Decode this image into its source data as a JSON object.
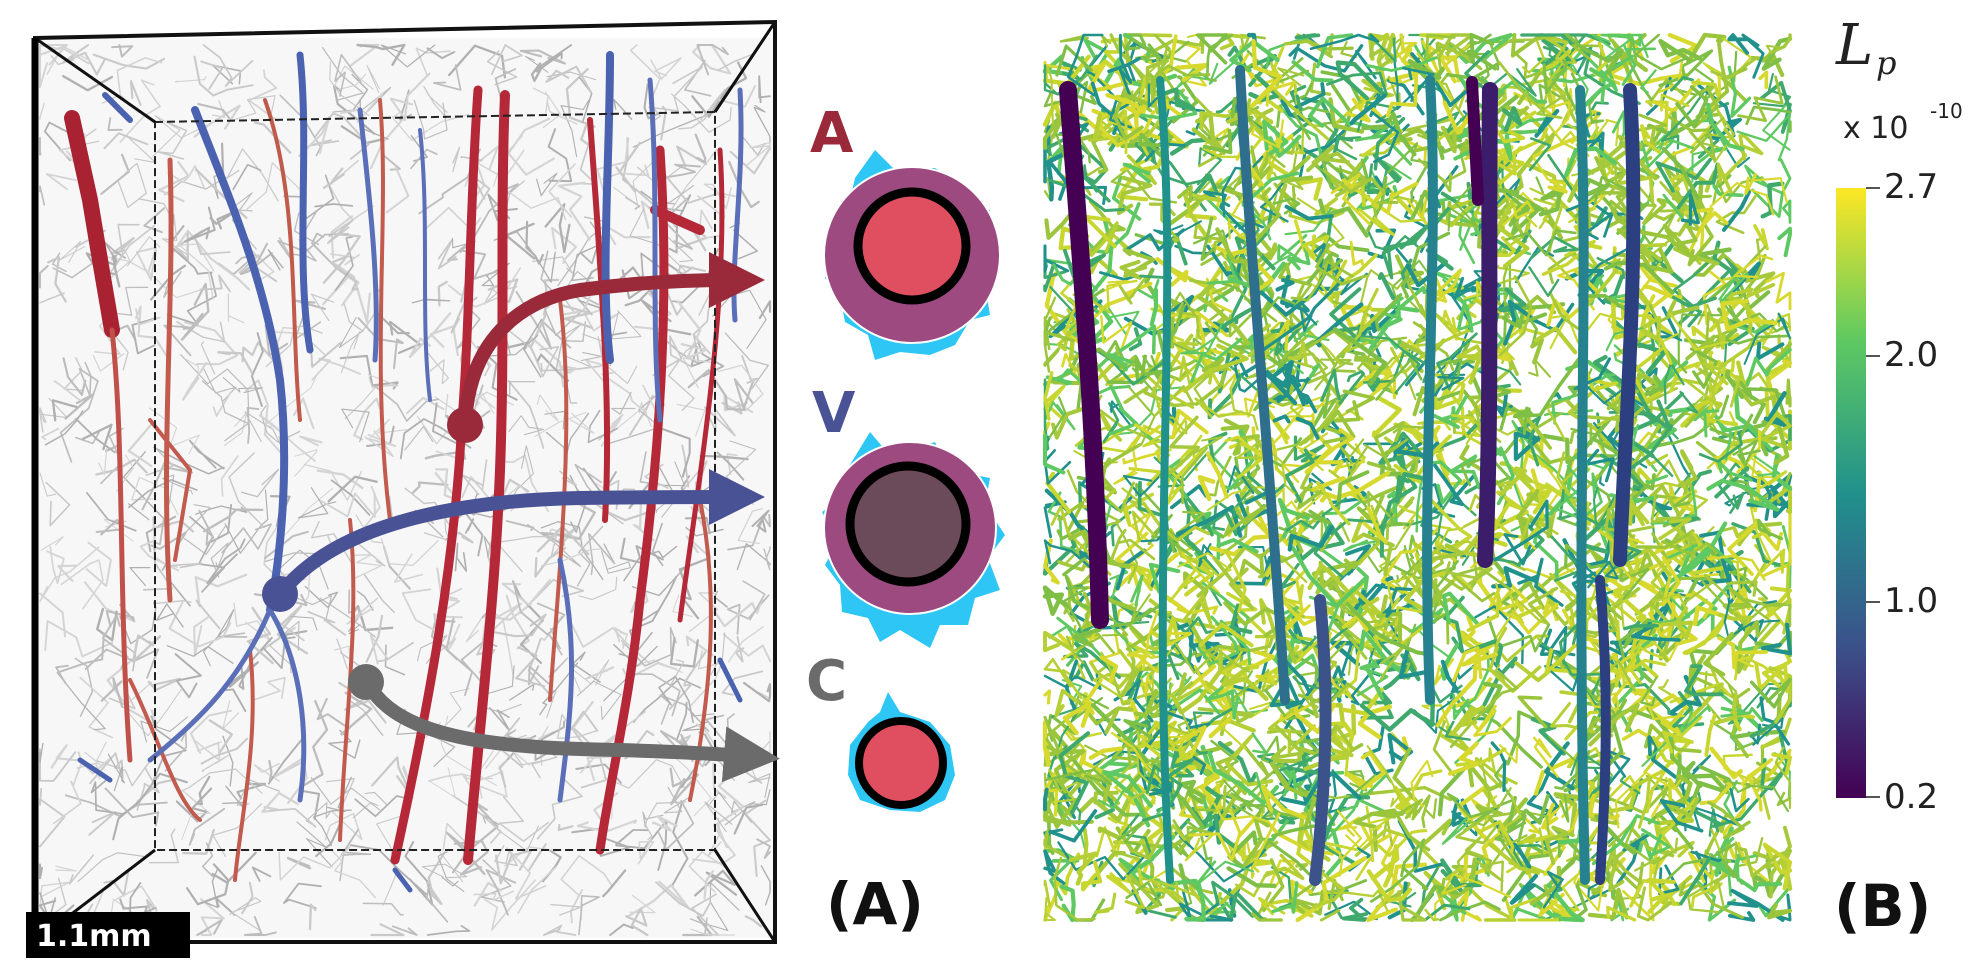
{
  "panelA": {
    "label": "(A)",
    "scale_bar": "1.1mm",
    "vessels": [
      {
        "letter": "A",
        "color": "#9a2a3a",
        "lumen": "#e04f5f"
      },
      {
        "letter": "V",
        "color": "#4a5296",
        "lumen": "#6b4a5a"
      },
      {
        "letter": "C",
        "color": "#6b6b6b",
        "lumen": "#e04f5f"
      }
    ],
    "colors": {
      "artery": "#b52838",
      "vein": "#4a62b0",
      "capillary": "#bdbdbd",
      "endfoot": "#2ec6f5",
      "wall": "#9c4a80"
    }
  },
  "panelB": {
    "label": "(B)",
    "colorbar": {
      "title": "L",
      "subscript": "p",
      "multiplier": "x 10",
      "exponent": "-10",
      "ticks": [
        "2.7",
        "2.0",
        "1.0",
        "0.2"
      ],
      "colors": [
        "#440154",
        "#3b528b",
        "#21918c",
        "#5ec962",
        "#fde725"
      ]
    }
  }
}
